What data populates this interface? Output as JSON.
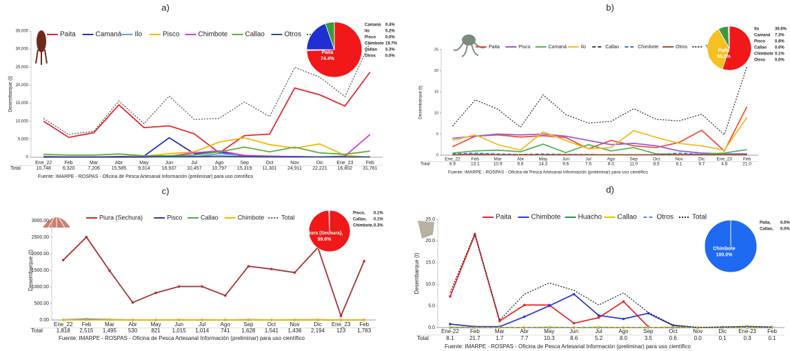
{
  "chart_data": [
    {
      "type": "line",
      "title": "a)",
      "y_label": "Desembarque (t)",
      "source": "Fuente: IMARPE - ROSPAS - Oficina de Pesca Artesanal Información (preliminar) para uso científico",
      "categories": [
        "Ene_22",
        "Feb",
        "Mar",
        "Abr",
        "May",
        "Jun",
        "Jul",
        "Ago",
        "Sep",
        "Oct",
        "Nov",
        "Dic",
        "Ene_23",
        "Feb"
      ],
      "ylim": [
        0,
        35000
      ],
      "yticks": [
        0,
        {
          "value": 5000,
          "label": "5,000"
        },
        {
          "value": 10000,
          "label": "10,000"
        },
        {
          "value": 15000,
          "label": "15,000"
        },
        {
          "value": 20000,
          "label": "20,000"
        },
        {
          "value": 25000,
          "label": "25,000"
        },
        {
          "value": 30000,
          "label": "30,000"
        },
        {
          "value": 35000,
          "label": "35,000"
        }
      ],
      "markers": false,
      "series": [
        {
          "name": "Paita",
          "color": "#e8262a",
          "values": [
            10000,
            5500,
            6800,
            14500,
            8200,
            8700,
            6500,
            1200,
            6000,
            6400,
            19200,
            17300,
            14200,
            23600
          ]
        },
        {
          "name": "Camaná",
          "color": "#1f2fb5",
          "values": [
            200,
            100,
            100,
            200,
            300,
            5400,
            1000,
            1500,
            300,
            100,
            100,
            100,
            100,
            100
          ]
        },
        {
          "name": "Ilo",
          "color": "#5aa0e0",
          "values": [
            100,
            100,
            100,
            100,
            100,
            100,
            100,
            1000,
            500,
            100,
            200,
            100,
            100,
            100
          ]
        },
        {
          "name": "Pisco",
          "color": "#f2b800",
          "values": [
            100,
            100,
            100,
            100,
            300,
            1000,
            1500,
            4200,
            5400,
            3500,
            2500,
            3700,
            500,
            0
          ]
        },
        {
          "name": "Chimbote",
          "color": "#d23cd6",
          "values": [
            0,
            0,
            0,
            0,
            0,
            300,
            1200,
            1800,
            500,
            300,
            200,
            100,
            300,
            6300
          ]
        },
        {
          "name": "Callao",
          "color": "#5cad3c",
          "values": [
            800,
            600,
            600,
            900,
            400,
            400,
            600,
            1500,
            2800,
            1500,
            2800,
            1200,
            800,
            1700
          ]
        },
        {
          "name": "Otros",
          "color": "#2b4f8a",
          "values": [
            100,
            100,
            100,
            100,
            100,
            200,
            200,
            300,
            200,
            100,
            100,
            100,
            100,
            100
          ]
        },
        {
          "name": "Total",
          "color": "#555555",
          "dash": "dotted",
          "values": [
            10748,
            6320,
            7206,
            15585,
            9314,
            16937,
            10457,
            10797,
            15319,
            11301,
            24911,
            22221,
            16802,
            31761
          ],
          "value_labels": [
            "10,748",
            "6,320",
            "7,206",
            "15,585",
            "9,314",
            "16,937",
            "10,457",
            "10,797",
            "15,319",
            "11,301",
            "24,911",
            "22,221",
            "16,802",
            "31,761"
          ]
        }
      ],
      "inset": {
        "type": "pie",
        "labels": [
          "Paita",
          "Camaná",
          "Ilo",
          "Pisco",
          "Chimbote",
          "Callao",
          "Otros"
        ],
        "values": [
          74.4,
          0.4,
          0.2,
          0.0,
          19.7,
          5.3,
          0.0
        ],
        "value_labels": [
          "74.4%",
          "0.4%",
          "0.2%",
          "0.0%",
          "19.7%",
          "5.3%",
          "0.0%"
        ],
        "colors": [
          "#f01818",
          "#d9a300",
          "#5aa0e0",
          "#f2b800",
          "#1f2fd0",
          "#3a9a3a",
          "#888888"
        ]
      }
    },
    {
      "type": "line",
      "title": "b)",
      "y_label": "Desembarque (t)",
      "source": "Fuente: IMARPE - ROSPAS - Oficina de Pesca Artesanal Información (preliminar) para uso científico",
      "categories": [
        "Ene_22",
        "Feb",
        "Mar",
        "Abr",
        "May",
        "Jun",
        "Jul",
        "Ago",
        "Sep",
        "Oct",
        "Nov",
        "Dic",
        "Ene_23",
        "Feb"
      ],
      "ylim": [
        0,
        25
      ],
      "yticks": [
        0,
        5,
        10,
        15,
        20,
        25
      ],
      "markers": false,
      "series": [
        {
          "name": "Paita",
          "color": "#f0503c",
          "values": [
            2.0,
            4.5,
            4.8,
            4.3,
            4.6,
            4.2,
            1.5,
            3.5,
            2.2,
            1.8,
            3.0,
            5.9,
            1.0,
            11.5
          ]
        },
        {
          "name": "Pisco",
          "color": "#9a5ad8",
          "values": [
            4.0,
            4.5,
            5.0,
            4.8,
            5.0,
            4.5,
            3.5,
            2.5,
            2.8,
            2.2,
            1.0,
            0.5,
            0.3,
            0.3
          ]
        },
        {
          "name": "Camaná",
          "color": "#55b455",
          "values": [
            0.5,
            1.0,
            1.2,
            0.8,
            2.6,
            0.6,
            2.5,
            1.0,
            1.8,
            0.3,
            0.2,
            0.2,
            0.5,
            1.3
          ]
        },
        {
          "name": "Ilo",
          "color": "#f5b820",
          "values": [
            3.5,
            4.8,
            2.5,
            1.2,
            5.5,
            3.5,
            1.5,
            1.8,
            5.8,
            4.2,
            2.8,
            2.2,
            1.2,
            9.0
          ]
        },
        {
          "name": "Callao",
          "color": "#444444",
          "dash": "dashed",
          "values": [
            0.1,
            0.1,
            0.1,
            0.1,
            0.1,
            0.1,
            0.1,
            0.1,
            0.1,
            0.1,
            0.1,
            0.1,
            0.1,
            0.1
          ]
        },
        {
          "name": "Chimbote",
          "color": "#3a6fd8",
          "dash": "dashed",
          "values": [
            0.3,
            0.5,
            0.3,
            0.2,
            0.3,
            0.2,
            0.2,
            0.1,
            0.1,
            0.1,
            0.5,
            0.2,
            0.1,
            0.1
          ]
        },
        {
          "name": "Otros",
          "color": "#a0522d",
          "values": [
            0.1,
            0.2,
            0.1,
            0.1,
            0.1,
            0.1,
            0.1,
            0.1,
            0.1,
            0.1,
            0.1,
            0.1,
            0.1,
            0.1
          ]
        },
        {
          "name": "Total",
          "color": "#333333",
          "dash": "dotted",
          "values": [
            6.9,
            13.1,
            10.9,
            6.6,
            14.3,
            9.6,
            7.6,
            8.0,
            11.0,
            8.5,
            8.1,
            9.7,
            4.8,
            21.0
          ],
          "value_labels": [
            "6.9",
            "13.1",
            "10.9",
            "6.6",
            "14.3",
            "9.6",
            "7.6",
            "8.0",
            "11.0",
            "8.5",
            "8.1",
            "9.7",
            "4.8",
            "21.0"
          ]
        }
      ],
      "inset": {
        "type": "pie",
        "labels": [
          "Paita",
          "Ilo",
          "Camaná",
          "Pisco",
          "Callao",
          "Chimbote",
          "Otros"
        ],
        "values": [
          55.2,
          36.6,
          7.3,
          0.8,
          0.0,
          0.1,
          0.0
        ],
        "value_labels": [
          "55.2%",
          "36.6%",
          "7.3%",
          "0.8%",
          "0.0%",
          "0.1%",
          "0.0%"
        ],
        "colors": [
          "#f01818",
          "#f5c020",
          "#3a9a3a",
          "#9a5ad8",
          "#444444",
          "#3a6fd8",
          "#a0522d"
        ]
      }
    },
    {
      "type": "line",
      "title": "c)",
      "y_label": "Desembarque (t)",
      "source": "Fuente: IMARPE - ROSPAS - Oficina de Pesca Artesanal Información (preliminar) para uso científico",
      "categories": [
        "Ene_22",
        "Feb",
        "Mar",
        "Abr",
        "May",
        "Jun",
        "Jul",
        "Ago",
        "Sep",
        "Oct",
        "Nov",
        "Dic",
        "Ene_23",
        "Feb"
      ],
      "ylim": [
        0,
        3000
      ],
      "yticks": [
        {
          "value": 0,
          "label": "0.00"
        },
        {
          "value": 500,
          "label": "500.00"
        },
        {
          "value": 1000,
          "label": "1000.00"
        },
        {
          "value": 1500,
          "label": "1500.00"
        },
        {
          "value": 2000,
          "label": "2000.00"
        },
        {
          "value": 2500,
          "label": "2500.00"
        },
        {
          "value": 3000,
          "label": "3000.00"
        }
      ],
      "markers": true,
      "series": [
        {
          "name": "Piura (Sechura)",
          "color": "#d42020",
          "values": [
            1810,
            2505,
            1490,
            528,
            818,
            1010,
            1010,
            738,
            1622,
            1538,
            1432,
            2188,
            122,
            1778
          ]
        },
        {
          "name": "Pisco",
          "color": "#2a3ab0",
          "values": [
            5,
            20,
            10,
            2,
            3,
            5,
            4,
            3,
            6,
            3,
            4,
            6,
            1,
            5
          ]
        },
        {
          "name": "Callao",
          "color": "#4caa4c",
          "values": [
            2,
            2,
            2,
            1,
            1,
            1,
            1,
            1,
            1,
            1,
            1,
            1,
            1,
            1
          ]
        },
        {
          "name": "Chimbote",
          "color": "#f2b800",
          "values": [
            3,
            3,
            3,
            1,
            2,
            3,
            3,
            2,
            2,
            2,
            2,
            3,
            1,
            2
          ]
        },
        {
          "name": "Total",
          "color": "#555555",
          "dash": "dotted",
          "values": [
            1818,
            2515,
            1495,
            530,
            821,
            1015,
            1014,
            741,
            1628,
            1541,
            1436,
            2194,
            123,
            1783
          ],
          "value_labels": [
            "1,818",
            "2,515",
            "1,495",
            "530",
            "821",
            "1,015",
            "1,014",
            "741",
            "1,628",
            "1,541",
            "1,436",
            "2,194",
            "123",
            "1,783"
          ]
        }
      ],
      "inset": {
        "type": "pie",
        "labels": [
          "Piura (Sechura),",
          "Pisco,",
          "Callao,",
          "Chimbote,"
        ],
        "values": [
          99.6,
          0.1,
          0.1,
          0.3
        ],
        "value_labels": [
          "99.6%",
          "0.1%",
          "0.1%",
          "0.3%"
        ],
        "colors": [
          "#f01818",
          "#2a3ab0",
          "#4caa4c",
          "#f2b800"
        ]
      }
    },
    {
      "type": "line",
      "title": "d)",
      "y_label": "Desembarque (t)",
      "source": "Fuente: IMARPE - ROSPAS - Oficina de Pesca Artesanal Información (preliminar) para uso científico",
      "categories": [
        "Ene-22",
        "Feb",
        "Mar",
        "Abr",
        "May",
        "Jun",
        "Jul",
        "Ago",
        "Sep",
        "Oct",
        "Nov",
        "Dic",
        "Ene-23",
        "Feb"
      ],
      "ylim": [
        0,
        25
      ],
      "yticks": [
        {
          "value": 0,
          "label": "0.0"
        },
        {
          "value": 5,
          "label": "5.0"
        },
        {
          "value": 10,
          "label": "10.0"
        },
        {
          "value": 15,
          "label": "15.0"
        },
        {
          "value": 20,
          "label": "20.0"
        },
        {
          "value": 25,
          "label": "25.0"
        }
      ],
      "markers": true,
      "series": [
        {
          "name": "Paita",
          "color": "#e8262a",
          "values": [
            7.2,
            21.5,
            1.5,
            5.2,
            5.2,
            1.0,
            2.3,
            6.0,
            0.2,
            null,
            null,
            null,
            null,
            null
          ]
        },
        {
          "name": "Chimbote",
          "color": "#2a3ad0",
          "values": [
            0.8,
            0.2,
            0.2,
            2.5,
            5.0,
            7.7,
            2.8,
            2.0,
            3.3,
            0.5,
            0.0,
            0.1,
            0.2,
            0.1
          ]
        },
        {
          "name": "Huacho",
          "color": "#2a9a3a",
          "values": [
            0.0,
            0.0,
            0.0,
            0.0,
            0.0,
            0.0,
            0.0,
            0.0,
            0.0,
            0.0,
            0.0,
            0.0,
            0.0,
            0.0
          ]
        },
        {
          "name": "Callao",
          "color": "#f2b800",
          "values": [
            0.1,
            0.0,
            0.0,
            0.0,
            0.1,
            0.0,
            0.1,
            0.0,
            0.0,
            0.1,
            0.0,
            0.0,
            0.1,
            0.0
          ]
        },
        {
          "name": "Otros",
          "color": "#5a8ae0",
          "dash": "dashed",
          "values": [
            0.0,
            0.0,
            0.0,
            0.0,
            0.0,
            0.0,
            0.0,
            0.0,
            0.0,
            0.0,
            0.0,
            0.0,
            0.0,
            0.0
          ]
        },
        {
          "name": "Total",
          "color": "#222222",
          "dash": "dotted",
          "values": [
            8.1,
            21.7,
            1.7,
            7.7,
            10.3,
            8.6,
            5.2,
            8.0,
            3.5,
            0.6,
            0.0,
            0.1,
            0.3,
            0.1
          ],
          "value_labels": [
            "8.1",
            "21.7",
            "1.7",
            "7.7",
            "10.3",
            "8.6",
            "5.2",
            "8.0",
            "3.5",
            "0.6",
            "0.0",
            "0.1",
            "0.3",
            "0.1"
          ]
        }
      ],
      "inset": {
        "type": "pie",
        "labels": [
          "Chimbote",
          "Paita,",
          "Callao,"
        ],
        "values": [
          100.0,
          0.0,
          0.0
        ],
        "value_labels": [
          "100.0%",
          "0.0%",
          "0.0%"
        ],
        "colors": [
          "#1e6af0",
          "#e8262a",
          "#f2b800"
        ]
      }
    }
  ]
}
